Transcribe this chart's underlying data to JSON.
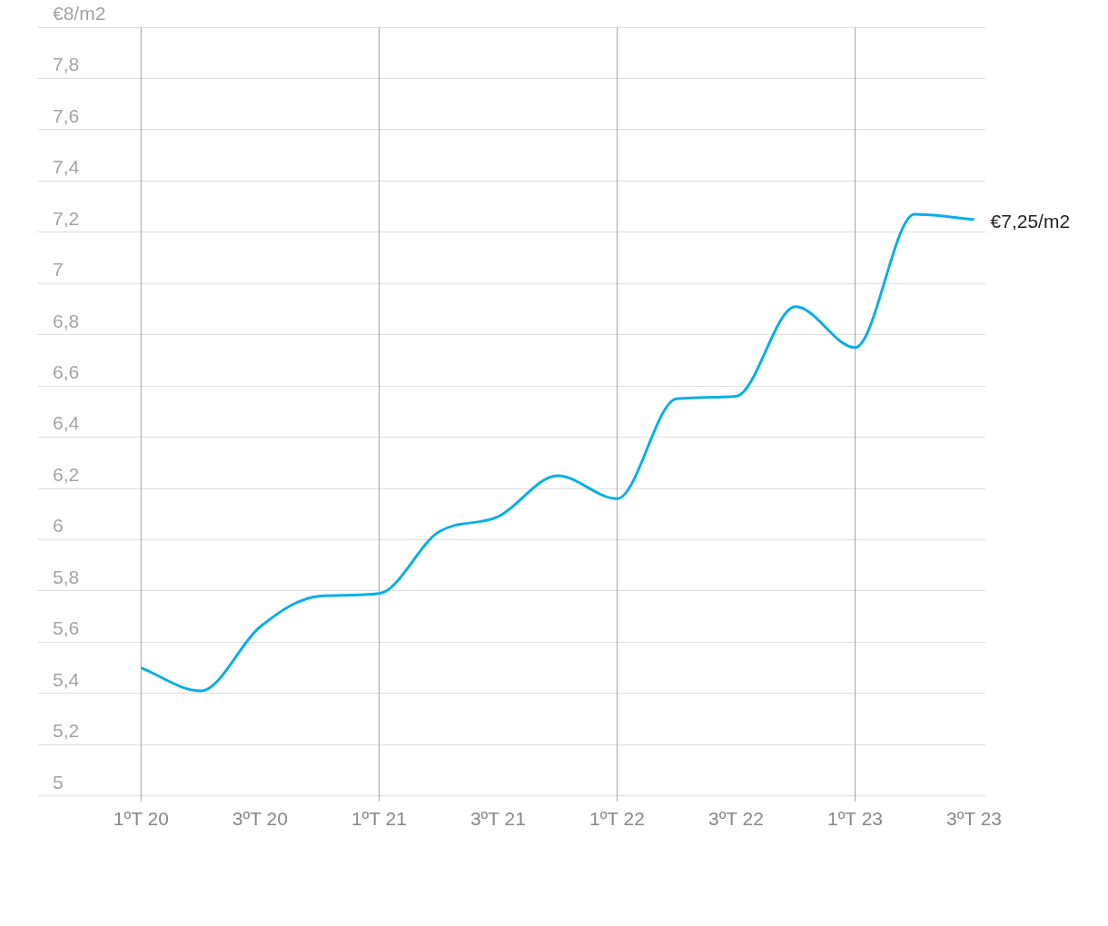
{
  "chart_data": {
    "type": "line",
    "categories": [
      "1ºT 20",
      null,
      "3ºT 20",
      null,
      "1ºT 21",
      null,
      "3ºT 21",
      null,
      "1ºT 22",
      null,
      "3ºT 22",
      null,
      "1ºT 23",
      null,
      "3ºT 23"
    ],
    "series": [
      {
        "color": "#0aaee8",
        "values": [
          5.5,
          5.41,
          5.66,
          5.78,
          5.79,
          6.03,
          6.09,
          6.25,
          6.16,
          6.55,
          6.56,
          6.91,
          6.75,
          7.27,
          7.25
        ]
      }
    ],
    "ylim": [
      5,
      8
    ],
    "yticks": [
      5,
      {
        "value": 5.2,
        "label": "5,2"
      },
      {
        "value": 5.4,
        "label": "5,4"
      },
      {
        "value": 5.6,
        "label": "5,6"
      },
      {
        "value": 5.8,
        "label": "5,8"
      },
      6,
      {
        "value": 6.2,
        "label": "6,2"
      },
      {
        "value": 6.4,
        "label": "6,4"
      },
      {
        "value": 6.6,
        "label": "6,6"
      },
      {
        "value": 6.8,
        "label": "6,8"
      },
      7,
      {
        "value": 7.2,
        "label": "7,2"
      },
      {
        "value": 7.4,
        "label": "7,4"
      },
      {
        "value": 7.6,
        "label": "7,6"
      },
      {
        "value": 7.8,
        "label": "7,8"
      },
      {
        "value": 8,
        "label": "€8/m2"
      }
    ],
    "grid": "y",
    "legend": false,
    "marker": "none",
    "line_style": "solid",
    "ref_lines": [
      {
        "axis": "x",
        "value": "1ºT 20",
        "color": "#a6a6a6"
      },
      {
        "axis": "x",
        "value": "1ºT 21",
        "color": "#a6a6a6"
      },
      {
        "axis": "x",
        "value": "1ºT 22",
        "color": "#a6a6a6"
      },
      {
        "axis": "x",
        "value": "1ºT 23",
        "color": "#a6a6a6"
      }
    ],
    "annotations": [
      {
        "text": "€7,25/m2",
        "x": "3ºT 23",
        "y": 7.25
      }
    ]
  }
}
